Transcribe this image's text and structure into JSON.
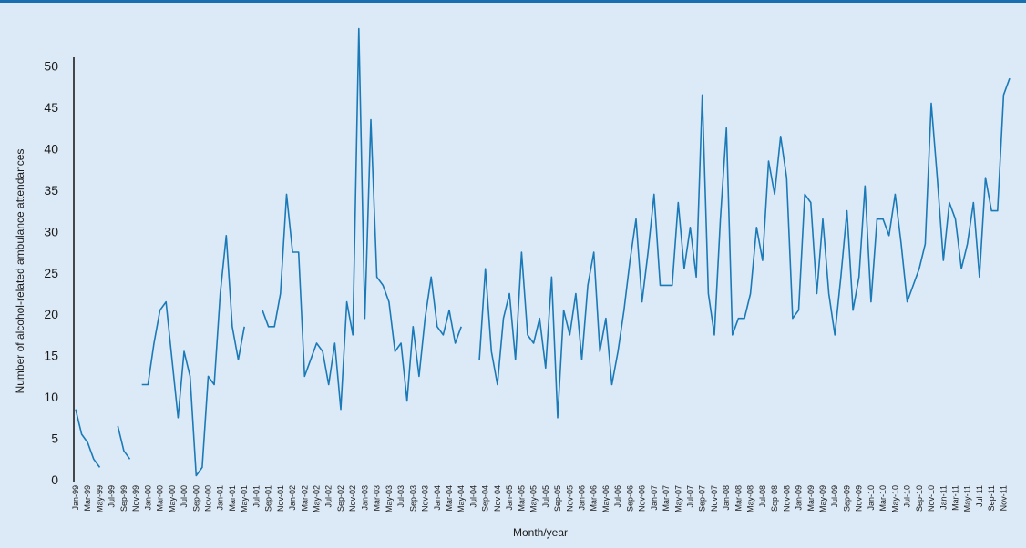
{
  "chart_data": {
    "type": "line",
    "title": "",
    "xlabel": "Month/year",
    "ylabel": "Number of alcohol-related ambulance attendances",
    "ylim": [
      0,
      55
    ],
    "yticks": [
      0,
      5,
      10,
      15,
      20,
      25,
      30,
      35,
      40,
      45,
      50
    ],
    "grid": false,
    "legend": "none",
    "line_color": "#1a7ab8",
    "x_tick_labels": [
      "Jan-99",
      "Mar-99",
      "May-99",
      "Jul-99",
      "Sep-99",
      "Nov-99",
      "Jan-00",
      "Mar-00",
      "May-00",
      "Jul-00",
      "Sep-00",
      "Nov-00",
      "Jan-01",
      "Mar-01",
      "May-01",
      "Jul-01",
      "Sep-01",
      "Nov-01",
      "Jan-02",
      "Mar-02",
      "May-02",
      "Jul-02",
      "Sep-02",
      "Nov-02",
      "Jan-03",
      "Mar-03",
      "May-03",
      "Jul-03",
      "Sep-03",
      "Nov-03",
      "Jan-04",
      "Mar-04",
      "May-04",
      "Jul-04",
      "Sep-04",
      "Nov-04",
      "Jan-05",
      "Mar-05",
      "May-05",
      "Jul-05",
      "Sep-05",
      "Nov-05",
      "Jan-06",
      "Mar-06",
      "May-06",
      "Jul-06",
      "Sep-06",
      "Nov-06",
      "Jan-07",
      "Mar-07",
      "May-07",
      "Jul-07",
      "Sep-07",
      "Nov-07",
      "Jan-08",
      "Mar-08",
      "May-08",
      "Jul-08",
      "Sep-08",
      "Nov-08",
      "Jan-09",
      "Mar-09",
      "May-09",
      "Jul-09",
      "Sep-09",
      "Nov-09",
      "Jan-10",
      "Mar-10",
      "May-10",
      "Jul-10",
      "Sep-10",
      "Nov-10",
      "Jan-11",
      "Mar-11",
      "May-11",
      "Jul-11",
      "Sep-11",
      "Nov-11"
    ],
    "x_start": "Jan-99",
    "x_end": "Dec-11",
    "values": [
      8.5,
      5.5,
      4.5,
      2.5,
      1.5,
      null,
      null,
      6.5,
      3.5,
      2.5,
      null,
      11.5,
      11.5,
      16.5,
      20.5,
      21.5,
      14.5,
      7.5,
      15.5,
      12.5,
      0.5,
      1.5,
      12.5,
      11.5,
      22.5,
      29.5,
      18.5,
      14.5,
      18.5,
      null,
      null,
      20.5,
      18.5,
      18.5,
      22.5,
      34.5,
      27.5,
      27.5,
      12.5,
      14.5,
      16.5,
      15.5,
      11.5,
      16.5,
      8.5,
      21.5,
      17.5,
      54.5,
      19.5,
      43.5,
      24.5,
      23.5,
      21.5,
      15.5,
      16.5,
      9.5,
      18.5,
      12.5,
      19.5,
      24.5,
      18.5,
      17.5,
      20.5,
      16.5,
      18.5,
      null,
      null,
      14.5,
      25.5,
      15.5,
      11.5,
      19.5,
      22.5,
      14.5,
      27.5,
      17.5,
      16.5,
      19.5,
      13.5,
      24.5,
      7.5,
      20.5,
      17.5,
      22.5,
      14.5,
      23.5,
      27.5,
      15.5,
      19.5,
      11.5,
      15.5,
      20.5,
      26.5,
      31.5,
      21.5,
      27.5,
      34.5,
      23.5,
      23.5,
      23.5,
      33.5,
      25.5,
      30.5,
      24.5,
      46.5,
      22.5,
      17.5,
      31.5,
      42.5,
      17.5,
      19.5,
      19.5,
      22.5,
      30.5,
      26.5,
      38.5,
      34.5,
      41.5,
      36.5,
      19.5,
      20.5,
      34.5,
      33.5,
      22.5,
      31.5,
      22.5,
      17.5,
      24.5,
      32.5,
      20.5,
      24.5,
      35.5,
      21.5,
      31.5,
      31.5,
      29.5,
      34.5,
      28.5,
      21.5,
      23.5,
      25.5,
      28.5,
      45.5,
      36.5,
      26.5,
      33.5,
      31.5,
      25.5,
      28.5,
      33.5,
      24.5,
      36.5,
      32.5,
      32.5,
      46.5,
      48.5
    ]
  }
}
